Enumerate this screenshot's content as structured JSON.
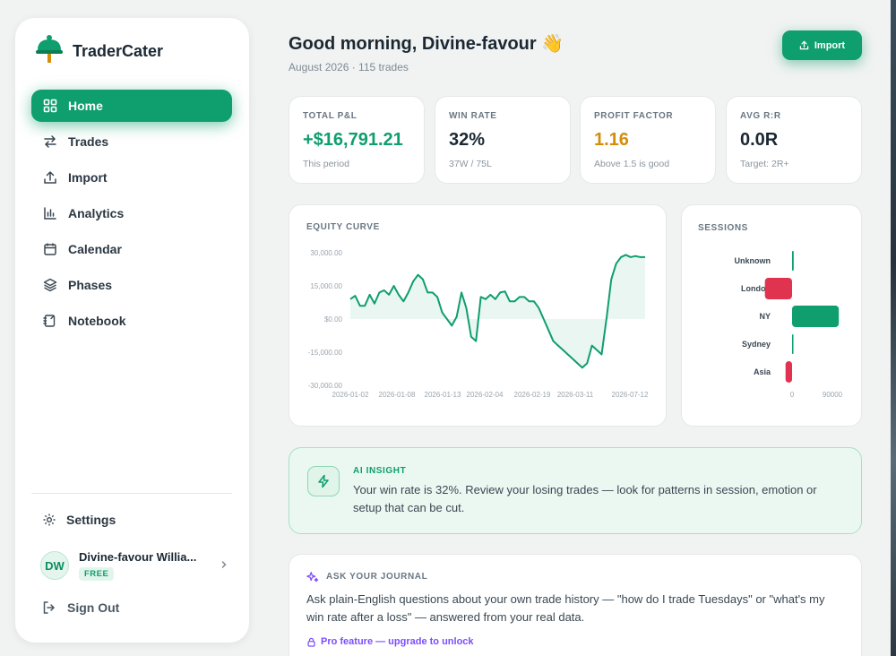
{
  "app": {
    "name": "TraderCater"
  },
  "nav": {
    "items": [
      {
        "label": "Home",
        "icon": "grid-icon",
        "active": true
      },
      {
        "label": "Trades",
        "icon": "arrows-left-right-icon"
      },
      {
        "label": "Import",
        "icon": "upload-icon"
      },
      {
        "label": "Analytics",
        "icon": "bar-chart-icon"
      },
      {
        "label": "Calendar",
        "icon": "calendar-icon"
      },
      {
        "label": "Phases",
        "icon": "layers-icon"
      },
      {
        "label": "Notebook",
        "icon": "notebook-icon"
      }
    ]
  },
  "settings": {
    "label": "Settings"
  },
  "user": {
    "initials": "DW",
    "name": "Divine-favour Willia...",
    "plan": "FREE"
  },
  "signout": {
    "label": "Sign Out"
  },
  "header": {
    "greeting": "Good morning, Divine-favour 👋",
    "subtitle": "August 2026 · 115 trades",
    "import_label": "Import"
  },
  "stats": [
    {
      "label": "TOTAL P&L",
      "value": "+$16,791.21",
      "sub": "This period",
      "color": "#0f9e6e"
    },
    {
      "label": "WIN RATE",
      "value": "32%",
      "sub": "37W / 75L",
      "color": "#1b2833"
    },
    {
      "label": "PROFIT FACTOR",
      "value": "1.16",
      "sub": "Above 1.5 is good",
      "color": "#d48d0b"
    },
    {
      "label": "AVG R:R",
      "value": "0.0R",
      "sub": "Target: 2R+",
      "color": "#1b2833"
    }
  ],
  "equity": {
    "title": "EQUITY CURVE"
  },
  "sessions": {
    "title": "SESSIONS"
  },
  "insight": {
    "label": "AI INSIGHT",
    "text": "Your win rate is 32%. Review your losing trades — look for patterns in session, emotion or setup that can be cut."
  },
  "journal": {
    "label": "ASK YOUR JOURNAL",
    "text": "Ask plain-English questions about your own trade history — \"how do I trade Tuesdays\" or \"what's my win rate after a loss\" — answered from your real data.",
    "pro": "Pro feature — upgrade to unlock"
  },
  "colors": {
    "accent": "#0f9e6e",
    "loss": "#e0334f",
    "warning": "#d48d0b",
    "pro": "#7c4dff"
  },
  "chart_data": [
    {
      "type": "area",
      "title": "EQUITY CURVE",
      "y_tick_labels": [
        "30,000.00",
        "15,000.00",
        "$0.00",
        "-15,000.00",
        "-30,000.00"
      ],
      "ylim": [
        -30000,
        30000
      ],
      "x_tick_labels": [
        "2026-01-02",
        "2026-01-08",
        "2026-01-13",
        "2026-02-04",
        "2026-02-19",
        "2026-03-11",
        "2026-07-12"
      ],
      "series": [
        {
          "values": [
            9000,
            10500,
            6000,
            6000,
            11000,
            7000,
            12000,
            13000,
            11000,
            15000,
            11000,
            8000,
            12000,
            17000,
            20000,
            18000,
            12000,
            12000,
            10000,
            3000,
            0,
            -3000,
            1000,
            12000,
            5000,
            -8000,
            -10000,
            10000,
            9000,
            11000,
            9000,
            12000,
            12500,
            8000,
            8000,
            10000,
            10000,
            8000,
            8000,
            5000,
            0,
            -5000,
            -10000,
            -12000,
            -14000,
            -16000,
            -18000,
            -20000,
            -22000,
            -20000,
            -12000,
            -14000,
            -16000,
            0,
            18000,
            25000,
            28000,
            29000,
            28000,
            28500,
            28000,
            28000
          ]
        }
      ]
    },
    {
      "type": "bar",
      "title": "SESSIONS",
      "categories": [
        "Unknown",
        "London",
        "NY",
        "Sydney",
        "Asia"
      ],
      "values": [
        1500,
        -25000,
        43000,
        1000,
        -6000
      ],
      "x_tick_labels": [
        "0",
        "90000"
      ],
      "xlim": [
        -28000,
        128000
      ]
    }
  ]
}
